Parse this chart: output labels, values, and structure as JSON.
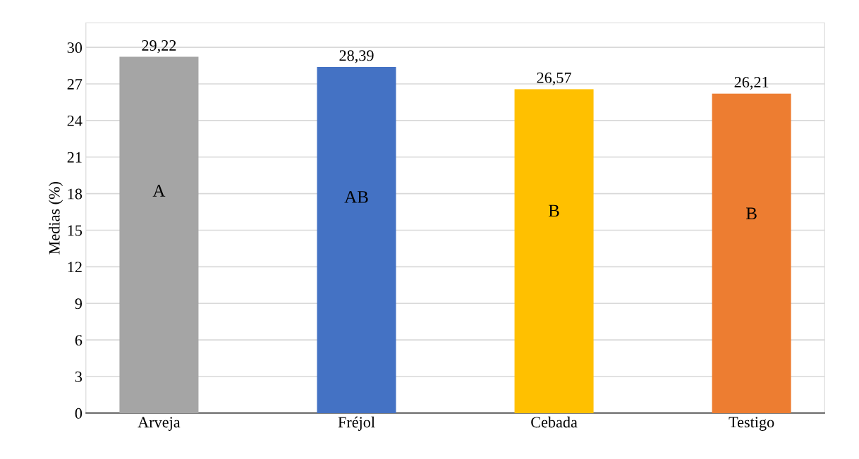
{
  "chart_data": {
    "type": "bar",
    "ylabel": "Medias (%)",
    "categories": [
      "Arveja",
      "Fréjol",
      "Cebada",
      "Testigo"
    ],
    "values": [
      29.22,
      28.39,
      26.57,
      26.21
    ],
    "colors": [
      "#a5a5a5",
      "#4472c4",
      "#ffc000",
      "#ed7d31"
    ],
    "value_labels": [
      "29,22",
      "28,39",
      "26,57",
      "26,21"
    ],
    "ylim": [
      0,
      32
    ],
    "yticks": [
      0,
      3,
      6,
      9,
      12,
      15,
      18,
      21,
      24,
      27,
      30
    ],
    "grid": "y",
    "annotations": [
      "A",
      "AB",
      "B",
      "B"
    ]
  }
}
